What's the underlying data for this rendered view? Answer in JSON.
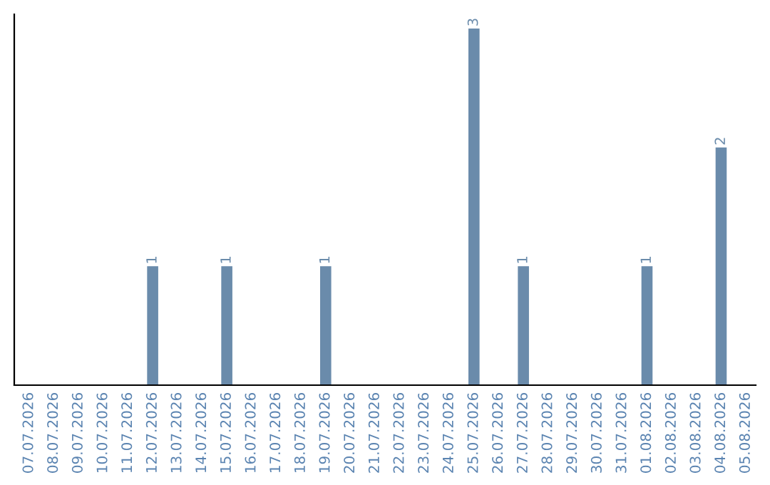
{
  "chart_data": {
    "type": "bar",
    "categories": [
      "07.07.2026",
      "08.07.2026",
      "09.07.2026",
      "10.07.2026",
      "11.07.2026",
      "12.07.2026",
      "13.07.2026",
      "14.07.2026",
      "15.07.2026",
      "16.07.2026",
      "17.07.2026",
      "18.07.2026",
      "19.07.2026",
      "20.07.2026",
      "21.07.2026",
      "22.07.2026",
      "23.07.2026",
      "24.07.2026",
      "25.07.2026",
      "26.07.2026",
      "27.07.2026",
      "28.07.2026",
      "29.07.2026",
      "30.07.2026",
      "31.07.2026",
      "01.08.2026",
      "02.08.2026",
      "03.08.2026",
      "04.08.2026",
      "05.08.2026"
    ],
    "values": [
      0,
      0,
      0,
      0,
      0,
      1,
      0,
      0,
      1,
      0,
      0,
      0,
      1,
      0,
      0,
      0,
      0,
      0,
      3,
      0,
      1,
      0,
      0,
      0,
      0,
      1,
      0,
      0,
      2,
      0
    ],
    "value_labels": [
      null,
      null,
      null,
      null,
      null,
      "1",
      null,
      null,
      "1",
      null,
      null,
      null,
      "1",
      null,
      null,
      null,
      null,
      null,
      "3",
      null,
      "1",
      null,
      null,
      null,
      null,
      "1",
      null,
      null,
      "2",
      null
    ],
    "color": "#6a8bab",
    "ylim": [
      0,
      3.12
    ],
    "tick_labels": "x",
    "grid": false,
    "legend": false
  }
}
